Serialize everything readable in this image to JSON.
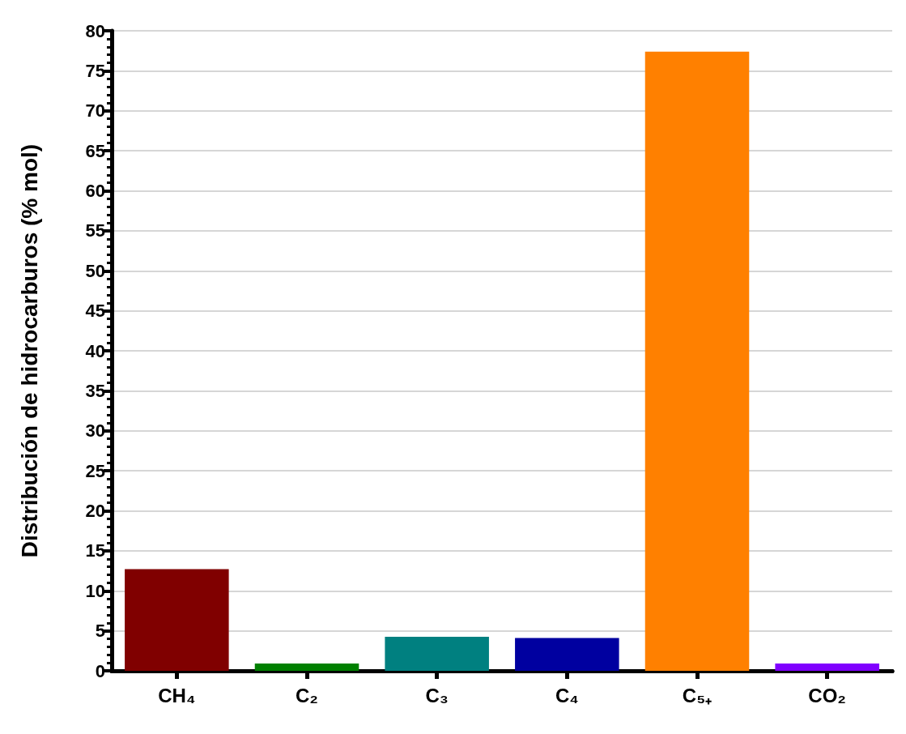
{
  "chart_data": {
    "type": "bar",
    "ylabel": "Distribución de hidrocarburos (% mol)",
    "categories": [
      "CH₄",
      "C₂",
      "C₃",
      "C₄",
      "C₅₊",
      "CO₂"
    ],
    "values": [
      12.7,
      0.9,
      4.25,
      4.1,
      77.4,
      0.9
    ],
    "colors": [
      "#800000",
      "#008000",
      "#008080",
      "#0000a0",
      "#ff8000",
      "#8000ff"
    ],
    "ylim": [
      0,
      80
    ],
    "yticks": [
      0,
      5,
      10,
      15,
      20,
      25,
      30,
      35,
      40,
      45,
      50,
      55,
      60,
      65,
      70,
      75,
      80
    ],
    "grid": "y"
  }
}
